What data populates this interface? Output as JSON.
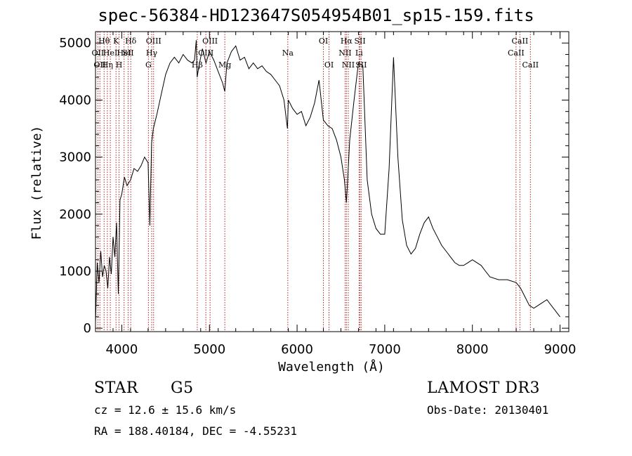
{
  "title": "spec-56384-HD123647S054954B01_sp15-159.fits",
  "info": {
    "object_class": "STAR",
    "subclass": "G5",
    "survey": "LAMOST DR3",
    "redshift": "cz = 12.6 ± 15.6 km/s",
    "obs_date": "Obs-Date: 20130401",
    "coords": "RA = 188.40184, DEC =  -4.55231"
  },
  "chart_data": {
    "type": "line",
    "title": "spec-56384-HD123647S054954B01_sp15-159.fits",
    "xlabel": "Wavelength (Å)",
    "ylabel": "Flux (relative)",
    "xlim": [
      3700,
      9100
    ],
    "ylim": [
      -60,
      5200
    ],
    "xticks": [
      4000,
      5000,
      6000,
      7000,
      8000,
      9000
    ],
    "yticks": [
      0,
      1000,
      2000,
      3000,
      4000,
      5000
    ],
    "grid": false,
    "line_color": "#000000",
    "marker_color": "#b22222",
    "series": [
      {
        "x": [
          3700,
          3720,
          3740,
          3760,
          3780,
          3800,
          3820,
          3840,
          3860,
          3880,
          3900,
          3920,
          3940,
          3960,
          3980,
          4000,
          4030,
          4060,
          4100,
          4140,
          4180,
          4220,
          4260,
          4300,
          4320,
          4340,
          4360,
          4400,
          4450,
          4500,
          4550,
          4600,
          4650,
          4700,
          4750,
          4800,
          4830,
          4850,
          4860,
          4880,
          4920,
          4960,
          5000,
          5050,
          5100,
          5150,
          5175,
          5200,
          5250,
          5300,
          5350,
          5400,
          5450,
          5500,
          5550,
          5600,
          5650,
          5700,
          5750,
          5800,
          5850,
          5890,
          5900,
          5950,
          6000,
          6050,
          6100,
          6150,
          6200,
          6250,
          6300,
          6350,
          6400,
          6450,
          6500,
          6540,
          6563,
          6580,
          6600,
          6650,
          6700,
          6750,
          6800,
          6850,
          6900,
          6950,
          7000,
          7050,
          7100,
          7150,
          7200,
          7250,
          7300,
          7350,
          7400,
          7450,
          7500,
          7550,
          7600,
          7650,
          7700,
          7750,
          7800,
          7850,
          7900,
          7950,
          8000,
          8100,
          8150,
          8200,
          8300,
          8400,
          8500,
          8550,
          8600,
          8650,
          8700,
          8750,
          8800,
          8850,
          8900,
          8950,
          9000
        ],
        "values": [
          100,
          1150,
          800,
          1350,
          900,
          1100,
          1000,
          700,
          1250,
          950,
          1600,
          1250,
          1850,
          600,
          2250,
          2350,
          2650,
          2500,
          2600,
          2800,
          2750,
          2850,
          3000,
          2900,
          1800,
          3250,
          3500,
          3750,
          4100,
          4450,
          4650,
          4750,
          4650,
          4800,
          4700,
          4650,
          4700,
          5050,
          4400,
          4600,
          4900,
          4650,
          4850,
          4700,
          4500,
          4300,
          4150,
          4650,
          4850,
          4950,
          4700,
          4750,
          4550,
          4650,
          4550,
          4600,
          4500,
          4450,
          4350,
          4250,
          4000,
          3500,
          4000,
          3850,
          3750,
          3800,
          3550,
          3700,
          3950,
          4350,
          3650,
          3550,
          3500,
          3300,
          3000,
          2600,
          2200,
          2700,
          3300,
          4000,
          4650,
          4600,
          2600,
          2000,
          1750,
          1650,
          1650,
          2800,
          4750,
          3000,
          1900,
          1450,
          1300,
          1400,
          1650,
          1850,
          1950,
          1750,
          1600,
          1450,
          1350,
          1250,
          1150,
          1100,
          1100,
          1150,
          1200,
          1100,
          1000,
          900,
          850,
          850,
          800,
          700,
          550,
          400,
          350,
          400,
          450,
          500,
          400,
          300,
          200
        ]
      }
    ],
    "lines": [
      {
        "w": 3727,
        "label": "OII",
        "row": 2
      },
      {
        "w": 3750,
        "label": "OII",
        "row": 3
      },
      {
        "w": 3798,
        "label": "Hθ",
        "row": 1
      },
      {
        "w": 3835,
        "label": "Hη",
        "row": 3
      },
      {
        "w": 3869,
        "label": "HeI",
        "row": 2
      },
      {
        "w": 3934,
        "label": "K",
        "row": 1
      },
      {
        "w": 3969,
        "label": "H",
        "row": 3
      },
      {
        "w": 4026,
        "label": "HeI",
        "row": 2
      },
      {
        "w": 4072,
        "label": "SII",
        "row": 2
      },
      {
        "w": 4102,
        "label": "Hδ",
        "row": 1
      },
      {
        "w": 4304,
        "label": "G",
        "row": 3
      },
      {
        "w": 4341,
        "label": "Hγ",
        "row": 2
      },
      {
        "w": 4363,
        "label": "OIII",
        "row": 1
      },
      {
        "w": 4861,
        "label": "Hβ",
        "row": 3
      },
      {
        "w": 4959,
        "label": "OIII",
        "row": 2
      },
      {
        "w": 5007,
        "label": "OIII",
        "row": 1
      },
      {
        "w": 5175,
        "label": "Mg",
        "row": 3
      },
      {
        "w": 5894,
        "label": "Na",
        "row": 2
      },
      {
        "w": 6300,
        "label": "OI",
        "row": 1
      },
      {
        "w": 6364,
        "label": "OI",
        "row": 3
      },
      {
        "w": 6548,
        "label": "NII",
        "row": 2
      },
      {
        "w": 6563,
        "label": "Hα",
        "row": 1
      },
      {
        "w": 6584,
        "label": "NII",
        "row": 3
      },
      {
        "w": 6717,
        "label": "SII",
        "row": 1
      },
      {
        "w": 6707,
        "label": "Li",
        "row": 2
      },
      {
        "w": 6731,
        "label": "SII",
        "row": 3
      },
      {
        "w": 8498,
        "label": "CaII",
        "row": 2
      },
      {
        "w": 8542,
        "label": "CaII",
        "row": 1
      },
      {
        "w": 8662,
        "label": "CaII",
        "row": 3
      }
    ]
  }
}
